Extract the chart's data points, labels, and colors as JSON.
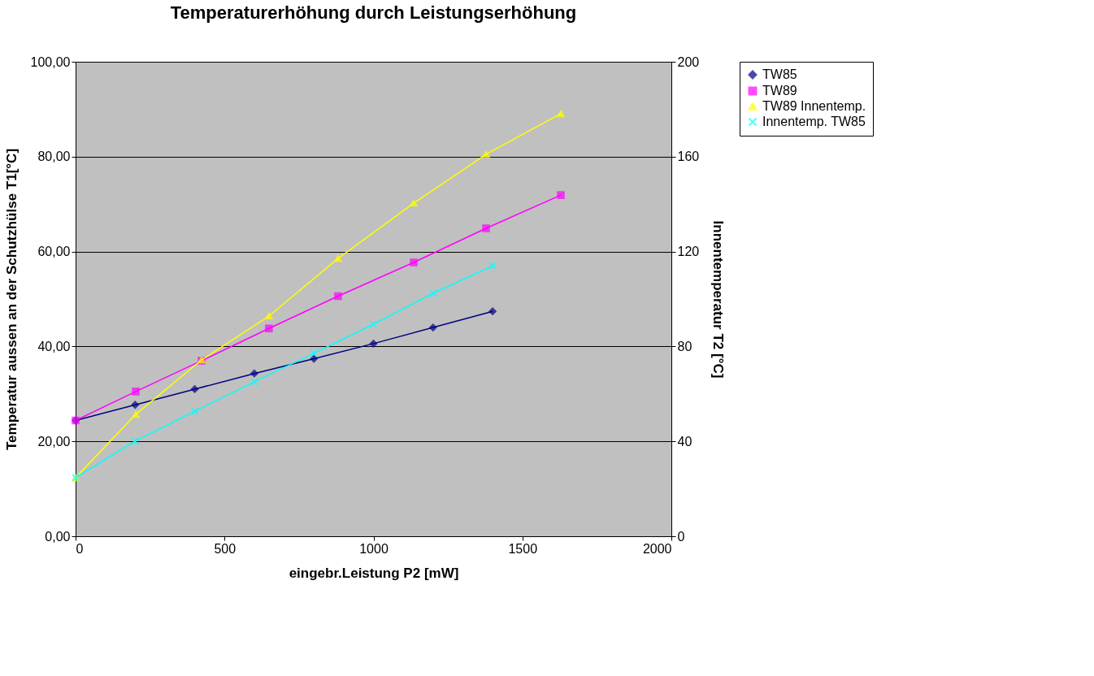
{
  "chart_data": {
    "type": "line",
    "title": "Temperaturerhöhung durch Leistungserhöhung",
    "xlabel": "eingebr.Leistung P2 [mW]",
    "ylabel": "Temperatur aussen an der Schutzhülse T1[°C]",
    "y2label": "Innentemperatur T2 [°C]",
    "xlim": [
      0,
      2000
    ],
    "xticks": [
      0,
      500,
      1000,
      1500,
      2000
    ],
    "ylim": [
      0,
      100
    ],
    "yticks": [
      {
        "value": 0,
        "label": "0,00"
      },
      {
        "value": 20,
        "label": "20,00"
      },
      {
        "value": 40,
        "label": "40,00"
      },
      {
        "value": 60,
        "label": "60,00"
      },
      {
        "value": 80,
        "label": "80,00"
      },
      {
        "value": 100,
        "label": "100,00"
      }
    ],
    "y2lim": [
      0,
      200
    ],
    "y2ticks": [
      0,
      40,
      80,
      120,
      160,
      200
    ],
    "grid": "y",
    "legend": "right",
    "line_style": "solid",
    "series": [
      {
        "name": "TW85",
        "color": "#000080",
        "marker": "diamond",
        "x": [
          0,
          200,
          400,
          600,
          800,
          1000,
          1200,
          1400
        ],
        "values": [
          24.4,
          27.7,
          31.0,
          34.3,
          37.4,
          40.6,
          44.0,
          47.4
        ]
      },
      {
        "name": "TW89",
        "color": "#ff00ff",
        "marker": "square",
        "x": [
          0,
          202,
          423,
          649,
          881,
          1135,
          1378,
          1629
        ],
        "values": [
          24.4,
          30.5,
          37.0,
          43.8,
          50.6,
          57.7,
          64.9,
          71.9
        ]
      },
      {
        "name": "TW89 Innentemp.",
        "color": "#ffff00",
        "marker": "triangle",
        "axis": "y2",
        "x": [
          0,
          202,
          423,
          649,
          881,
          1135,
          1378,
          1629
        ],
        "values": [
          24.7,
          51.4,
          74.3,
          92.8,
          117.1,
          140.4,
          161.0,
          178.1
        ]
      },
      {
        "name": "Innentemp. TW85",
        "color": "#00ffff",
        "marker": "cross",
        "axis": "y2",
        "x": [
          0,
          200,
          400,
          600,
          800,
          1000,
          1200,
          1400
        ],
        "values": [
          24.7,
          40.1,
          52.7,
          65.1,
          77.1,
          89.4,
          102.4,
          114.0
        ]
      }
    ]
  }
}
